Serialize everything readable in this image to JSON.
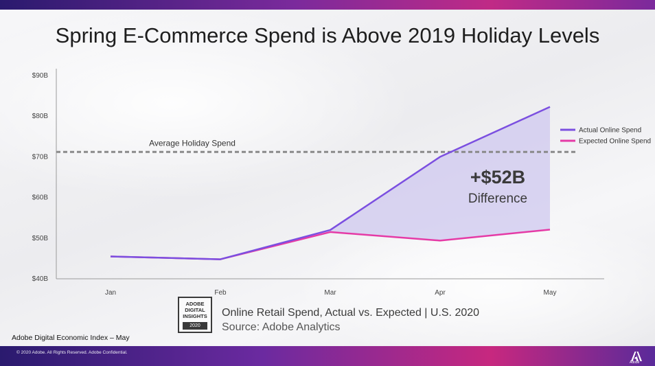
{
  "slide": {
    "title": "Spring E-Commerce Spend is Above 2019 Holiday Levels",
    "footer_text": "Adobe Digital Economic Index – May",
    "copyright": "© 2020 Adobe.  All Rights Reserved.  Adobe Confidential.",
    "logo_text": "Adobe",
    "badge_lines": [
      "ADOBE",
      "DIGITAL",
      "INSIGHTS"
    ],
    "badge_year": "2020",
    "caption": "Online Retail Spend, Actual vs. Expected | U.S. 2020",
    "source": "Source: Adobe Analytics",
    "colors": {
      "actual": "#7b4fe0",
      "expected": "#e53aa6",
      "fill": "#cfc8ef",
      "reference": "#8a8a8a"
    }
  },
  "chart_data": {
    "type": "line",
    "categories": [
      "Jan",
      "Feb",
      "Mar",
      "Apr",
      "May"
    ],
    "series": [
      {
        "name": "Actual Online Spend",
        "values": [
          45.5,
          44.8,
          52.0,
          70.0,
          82.3
        ]
      },
      {
        "name": "Expected Online Spend",
        "values": [
          45.5,
          44.8,
          51.5,
          49.4,
          52.1
        ]
      }
    ],
    "ylim": [
      40,
      90
    ],
    "yticks": [
      {
        "value": 90,
        "label": "$90B"
      },
      {
        "value": 80,
        "label": "$80B"
      },
      {
        "value": 70,
        "label": "$70B"
      },
      {
        "value": 60,
        "label": "$60B"
      },
      {
        "value": 50,
        "label": "$50B"
      },
      {
        "value": 40,
        "label": "$40B"
      }
    ],
    "reference_line": {
      "value": 71.2,
      "label": "Average Holiday Spend"
    },
    "annotation": {
      "value_text": "+$52B",
      "label": "Difference"
    },
    "fill_between": {
      "from_index": 2,
      "to_index": 4
    },
    "legend_position": "right",
    "grid": false
  }
}
